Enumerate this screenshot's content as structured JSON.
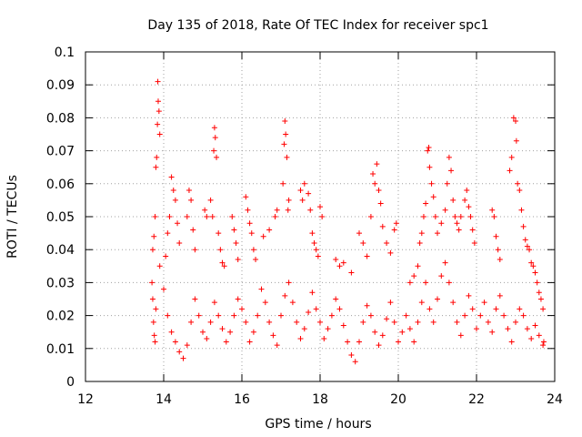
{
  "chart_data": {
    "type": "scatter",
    "title": "Day 135 of 2018, Rate Of TEC Index for receiver spc1",
    "xlabel": "GPS time / hours",
    "ylabel": "ROTI / TECUs",
    "xlim": [
      12,
      24
    ],
    "ylim": [
      0,
      0.1
    ],
    "xticks": [
      12,
      14,
      16,
      18,
      20,
      22,
      24
    ],
    "yticks": [
      0,
      0.01,
      0.02,
      0.03,
      0.04,
      0.05,
      0.06,
      0.07,
      0.08,
      0.09,
      0.1
    ],
    "xtick_labels": [
      "12",
      "14",
      "16",
      "18",
      "20",
      "22",
      "24"
    ],
    "ytick_labels": [
      "0",
      "0.01",
      "0.02",
      "0.03",
      "0.04",
      "0.05",
      "0.06",
      "0.07",
      "0.08",
      "0.09",
      "0.1"
    ],
    "grid": true,
    "marker": "+",
    "marker_color": "#ff0000",
    "series": [
      {
        "name": "spc1",
        "points": [
          [
            13.85,
            0.091
          ],
          [
            13.86,
            0.085
          ],
          [
            13.88,
            0.082
          ],
          [
            13.84,
            0.078
          ],
          [
            13.9,
            0.075
          ],
          [
            13.82,
            0.068
          ],
          [
            13.8,
            0.065
          ],
          [
            13.78,
            0.05
          ],
          [
            13.75,
            0.044
          ],
          [
            13.72,
            0.04
          ],
          [
            14.2,
            0.062
          ],
          [
            14.25,
            0.058
          ],
          [
            14.3,
            0.055
          ],
          [
            14.15,
            0.05
          ],
          [
            14.35,
            0.048
          ],
          [
            14.1,
            0.045
          ],
          [
            14.4,
            0.042
          ],
          [
            14.05,
            0.038
          ],
          [
            14.65,
            0.058
          ],
          [
            14.7,
            0.055
          ],
          [
            14.6,
            0.05
          ],
          [
            14.75,
            0.046
          ],
          [
            14.8,
            0.04
          ],
          [
            15.05,
            0.052
          ],
          [
            15.1,
            0.05
          ],
          [
            15.2,
            0.055
          ],
          [
            15.25,
            0.05
          ],
          [
            15.3,
            0.077
          ],
          [
            15.32,
            0.074
          ],
          [
            15.28,
            0.07
          ],
          [
            15.35,
            0.068
          ],
          [
            15.4,
            0.045
          ],
          [
            15.45,
            0.04
          ],
          [
            15.5,
            0.036
          ],
          [
            15.55,
            0.035
          ],
          [
            15.75,
            0.05
          ],
          [
            15.8,
            0.046
          ],
          [
            15.85,
            0.042
          ],
          [
            15.9,
            0.037
          ],
          [
            16.1,
            0.056
          ],
          [
            16.15,
            0.052
          ],
          [
            16.2,
            0.048
          ],
          [
            16.25,
            0.045
          ],
          [
            16.3,
            0.04
          ],
          [
            16.35,
            0.037
          ],
          [
            16.55,
            0.044
          ],
          [
            16.7,
            0.046
          ],
          [
            16.85,
            0.05
          ],
          [
            16.9,
            0.052
          ],
          [
            17.1,
            0.079
          ],
          [
            17.12,
            0.075
          ],
          [
            17.08,
            0.072
          ],
          [
            17.15,
            0.068
          ],
          [
            17.05,
            0.06
          ],
          [
            17.2,
            0.055
          ],
          [
            17.18,
            0.052
          ],
          [
            17.5,
            0.058
          ],
          [
            17.55,
            0.055
          ],
          [
            17.6,
            0.06
          ],
          [
            17.7,
            0.057
          ],
          [
            17.75,
            0.052
          ],
          [
            17.8,
            0.045
          ],
          [
            17.85,
            0.042
          ],
          [
            17.9,
            0.04
          ],
          [
            17.95,
            0.038
          ],
          [
            18.0,
            0.053
          ],
          [
            18.05,
            0.05
          ],
          [
            18.4,
            0.037
          ],
          [
            18.5,
            0.035
          ],
          [
            18.6,
            0.036
          ],
          [
            18.8,
            0.033
          ],
          [
            19.0,
            0.045
          ],
          [
            19.1,
            0.042
          ],
          [
            19.2,
            0.038
          ],
          [
            19.3,
            0.05
          ],
          [
            19.35,
            0.063
          ],
          [
            19.4,
            0.06
          ],
          [
            19.45,
            0.066
          ],
          [
            19.5,
            0.058
          ],
          [
            19.55,
            0.054
          ],
          [
            19.6,
            0.047
          ],
          [
            19.7,
            0.042
          ],
          [
            19.8,
            0.039
          ],
          [
            19.9,
            0.046
          ],
          [
            19.95,
            0.048
          ],
          [
            20.3,
            0.03
          ],
          [
            20.4,
            0.032
          ],
          [
            20.5,
            0.035
          ],
          [
            20.55,
            0.042
          ],
          [
            20.6,
            0.045
          ],
          [
            20.65,
            0.05
          ],
          [
            20.7,
            0.054
          ],
          [
            20.75,
            0.07
          ],
          [
            20.78,
            0.071
          ],
          [
            20.8,
            0.065
          ],
          [
            20.85,
            0.06
          ],
          [
            20.9,
            0.056
          ],
          [
            20.95,
            0.05
          ],
          [
            21.0,
            0.045
          ],
          [
            21.1,
            0.048
          ],
          [
            21.2,
            0.052
          ],
          [
            21.25,
            0.06
          ],
          [
            21.3,
            0.068
          ],
          [
            21.35,
            0.064
          ],
          [
            21.4,
            0.055
          ],
          [
            21.45,
            0.05
          ],
          [
            21.5,
            0.048
          ],
          [
            21.55,
            0.046
          ],
          [
            21.6,
            0.05
          ],
          [
            21.7,
            0.055
          ],
          [
            21.75,
            0.058
          ],
          [
            21.8,
            0.053
          ],
          [
            21.85,
            0.05
          ],
          [
            21.9,
            0.046
          ],
          [
            21.95,
            0.042
          ],
          [
            22.4,
            0.052
          ],
          [
            22.45,
            0.05
          ],
          [
            22.5,
            0.044
          ],
          [
            22.55,
            0.04
          ],
          [
            22.6,
            0.037
          ],
          [
            22.85,
            0.064
          ],
          [
            22.9,
            0.068
          ],
          [
            22.95,
            0.08
          ],
          [
            23.0,
            0.079
          ],
          [
            23.02,
            0.073
          ],
          [
            23.05,
            0.06
          ],
          [
            23.1,
            0.058
          ],
          [
            23.15,
            0.052
          ],
          [
            23.2,
            0.047
          ],
          [
            23.25,
            0.043
          ],
          [
            23.3,
            0.041
          ],
          [
            23.35,
            0.04
          ],
          [
            23.4,
            0.036
          ],
          [
            23.45,
            0.035
          ],
          [
            23.5,
            0.033
          ],
          [
            23.55,
            0.03
          ],
          [
            23.6,
            0.027
          ],
          [
            23.65,
            0.025
          ],
          [
            23.7,
            0.022
          ],
          [
            23.72,
            0.012
          ],
          [
            13.7,
            0.03
          ],
          [
            13.72,
            0.025
          ],
          [
            13.74,
            0.018
          ],
          [
            13.76,
            0.014
          ],
          [
            13.78,
            0.012
          ],
          [
            13.8,
            0.022
          ],
          [
            13.9,
            0.035
          ],
          [
            14.0,
            0.028
          ],
          [
            14.1,
            0.02
          ],
          [
            14.2,
            0.015
          ],
          [
            14.3,
            0.012
          ],
          [
            14.4,
            0.009
          ],
          [
            14.5,
            0.007
          ],
          [
            14.6,
            0.011
          ],
          [
            14.7,
            0.018
          ],
          [
            14.8,
            0.025
          ],
          [
            14.9,
            0.02
          ],
          [
            15.0,
            0.015
          ],
          [
            15.1,
            0.013
          ],
          [
            15.2,
            0.018
          ],
          [
            15.3,
            0.024
          ],
          [
            15.4,
            0.02
          ],
          [
            15.5,
            0.016
          ],
          [
            15.6,
            0.012
          ],
          [
            15.7,
            0.015
          ],
          [
            15.8,
            0.02
          ],
          [
            15.9,
            0.025
          ],
          [
            16.0,
            0.022
          ],
          [
            16.1,
            0.018
          ],
          [
            16.2,
            0.012
          ],
          [
            16.3,
            0.015
          ],
          [
            16.4,
            0.02
          ],
          [
            16.5,
            0.028
          ],
          [
            16.6,
            0.024
          ],
          [
            16.7,
            0.018
          ],
          [
            16.8,
            0.014
          ],
          [
            16.9,
            0.011
          ],
          [
            17.0,
            0.02
          ],
          [
            17.1,
            0.026
          ],
          [
            17.2,
            0.03
          ],
          [
            17.3,
            0.024
          ],
          [
            17.4,
            0.018
          ],
          [
            17.5,
            0.013
          ],
          [
            17.6,
            0.016
          ],
          [
            17.7,
            0.021
          ],
          [
            17.8,
            0.027
          ],
          [
            17.9,
            0.022
          ],
          [
            18.0,
            0.018
          ],
          [
            18.1,
            0.013
          ],
          [
            18.2,
            0.016
          ],
          [
            18.3,
            0.02
          ],
          [
            18.4,
            0.025
          ],
          [
            18.5,
            0.022
          ],
          [
            18.6,
            0.017
          ],
          [
            18.7,
            0.012
          ],
          [
            18.8,
            0.008
          ],
          [
            18.9,
            0.006
          ],
          [
            19.0,
            0.012
          ],
          [
            19.1,
            0.018
          ],
          [
            19.2,
            0.023
          ],
          [
            19.3,
            0.02
          ],
          [
            19.4,
            0.015
          ],
          [
            19.5,
            0.011
          ],
          [
            19.6,
            0.014
          ],
          [
            19.7,
            0.019
          ],
          [
            19.8,
            0.024
          ],
          [
            19.9,
            0.018
          ],
          [
            20.0,
            0.012
          ],
          [
            20.1,
            0.015
          ],
          [
            20.2,
            0.02
          ],
          [
            20.3,
            0.016
          ],
          [
            20.4,
            0.012
          ],
          [
            20.5,
            0.018
          ],
          [
            20.6,
            0.024
          ],
          [
            20.7,
            0.03
          ],
          [
            20.8,
            0.022
          ],
          [
            20.9,
            0.018
          ],
          [
            21.0,
            0.025
          ],
          [
            21.1,
            0.032
          ],
          [
            21.2,
            0.036
          ],
          [
            21.3,
            0.03
          ],
          [
            21.4,
            0.024
          ],
          [
            21.5,
            0.018
          ],
          [
            21.6,
            0.014
          ],
          [
            21.7,
            0.02
          ],
          [
            21.8,
            0.026
          ],
          [
            21.9,
            0.022
          ],
          [
            22.0,
            0.016
          ],
          [
            22.1,
            0.02
          ],
          [
            22.2,
            0.024
          ],
          [
            22.3,
            0.018
          ],
          [
            22.4,
            0.015
          ],
          [
            22.5,
            0.022
          ],
          [
            22.6,
            0.026
          ],
          [
            22.7,
            0.02
          ],
          [
            22.8,
            0.016
          ],
          [
            22.9,
            0.012
          ],
          [
            23.0,
            0.018
          ],
          [
            23.1,
            0.022
          ],
          [
            23.2,
            0.02
          ],
          [
            23.3,
            0.016
          ],
          [
            23.4,
            0.013
          ],
          [
            23.5,
            0.017
          ],
          [
            23.6,
            0.014
          ],
          [
            23.7,
            0.011
          ]
        ]
      }
    ]
  }
}
